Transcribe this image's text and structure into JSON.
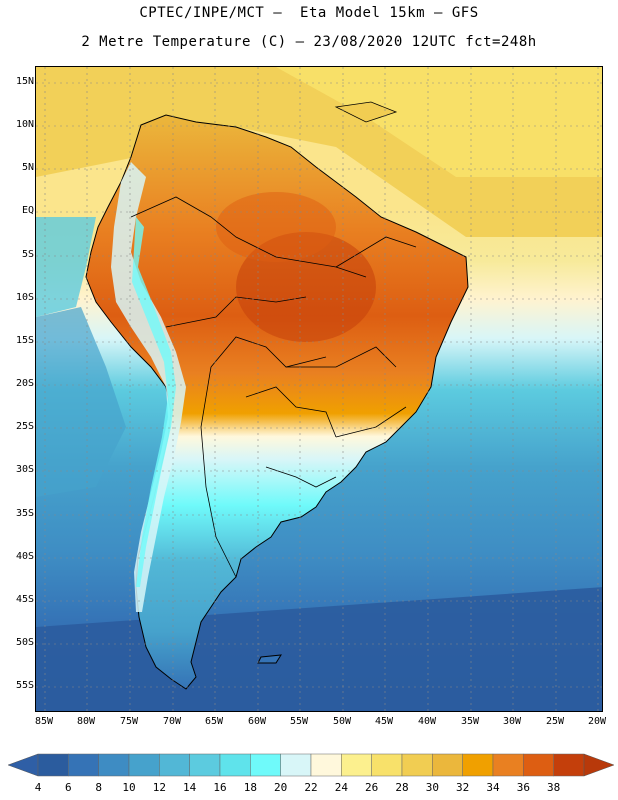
{
  "title": {
    "line1": "CPTEC/INPE/MCT –  Eta Model 15km – GFS",
    "line2": "2 Metre Temperature (C) – 23/08/2020 12UTC fct=248h"
  },
  "axes": {
    "lat_labels": [
      "15N",
      "10N",
      "5N",
      "EQ",
      "5S",
      "10S",
      "15S",
      "20S",
      "25S",
      "30S",
      "35S",
      "40S",
      "45S",
      "50S",
      "55S"
    ],
    "lon_labels": [
      "85W",
      "80W",
      "75W",
      "70W",
      "65W",
      "60W",
      "55W",
      "50W",
      "45W",
      "40W",
      "35W",
      "30W",
      "25W",
      "20W"
    ]
  },
  "colorbar": {
    "labels": [
      "4",
      "6",
      "8",
      "10",
      "12",
      "14",
      "16",
      "18",
      "20",
      "22",
      "24",
      "26",
      "28",
      "30",
      "32",
      "34",
      "36",
      "38"
    ],
    "colors": [
      "#2b5c9e",
      "#3573b6",
      "#3e8cc3",
      "#46a2cc",
      "#52b7d6",
      "#5ccbdf",
      "#5fe3eb",
      "#6ffafa",
      "#d8f6f8",
      "#fff8dc",
      "#fcf08e",
      "#f8e16a",
      "#f1cd52",
      "#ebb73c",
      "#f0a000",
      "#e98021",
      "#dd5e12",
      "#c43f0b"
    ],
    "under_color": "#2f5fa6",
    "over_color": "#b8390a"
  },
  "colors": {
    "ocean_cold": "#2b5c9e",
    "ocean_mid": "#46a2cc",
    "ocean_warm": "#f8e16a",
    "land_hot": "#dd5e12",
    "andes": "#d8f6f8"
  }
}
